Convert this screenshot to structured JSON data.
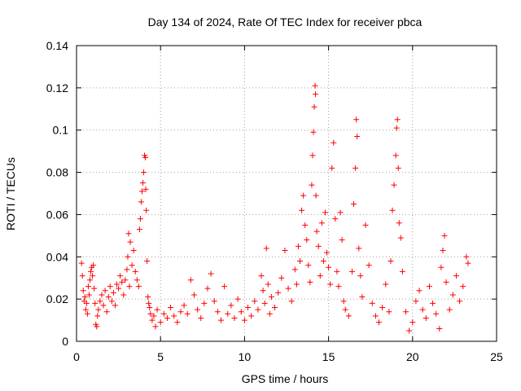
{
  "chart_data": {
    "type": "scatter",
    "title": "Day 134 of 2024, Rate Of TEC Index for receiver pbca",
    "xlabel": "GPS time / hours",
    "ylabel": "ROTI / TECUs",
    "xlim": [
      0,
      25
    ],
    "ylim": [
      0,
      0.14
    ],
    "x_ticks": [
      0,
      5,
      10,
      15,
      20,
      25
    ],
    "x_tick_labels": [
      "0",
      "5",
      "10",
      "15",
      "20",
      "25"
    ],
    "y_ticks": [
      0,
      0.02,
      0.04,
      0.06,
      0.08,
      0.1,
      0.12,
      0.14
    ],
    "y_tick_labels": [
      "0",
      "0.02",
      "0.04",
      "0.06",
      "0.08",
      "0.1",
      "0.12",
      "0.14"
    ],
    "grid": true,
    "marker": "+",
    "color": "#ff0000",
    "series": [
      {
        "name": "ROTI",
        "points": [
          [
            0.3,
            0.037
          ],
          [
            0.35,
            0.031
          ],
          [
            0.4,
            0.024
          ],
          [
            0.45,
            0.019
          ],
          [
            0.5,
            0.021
          ],
          [
            0.55,
            0.015
          ],
          [
            0.6,
            0.018
          ],
          [
            0.65,
            0.013
          ],
          [
            0.7,
            0.026
          ],
          [
            0.75,
            0.022
          ],
          [
            0.8,
            0.029
          ],
          [
            0.85,
            0.033
          ],
          [
            0.9,
            0.035
          ],
          [
            0.95,
            0.031
          ],
          [
            1.0,
            0.036
          ],
          [
            1.05,
            0.025
          ],
          [
            1.1,
            0.018
          ],
          [
            1.15,
            0.008
          ],
          [
            1.2,
            0.007
          ],
          [
            1.25,
            0.012
          ],
          [
            1.3,
            0.015
          ],
          [
            1.4,
            0.019
          ],
          [
            1.5,
            0.022
          ],
          [
            1.6,
            0.017
          ],
          [
            1.7,
            0.024
          ],
          [
            1.8,
            0.014
          ],
          [
            1.9,
            0.021
          ],
          [
            2.0,
            0.026
          ],
          [
            2.1,
            0.019
          ],
          [
            2.2,
            0.023
          ],
          [
            2.3,
            0.017
          ],
          [
            2.4,
            0.027
          ],
          [
            2.5,
            0.025
          ],
          [
            2.6,
            0.031
          ],
          [
            2.7,
            0.028
          ],
          [
            2.8,
            0.022
          ],
          [
            2.9,
            0.029
          ],
          [
            3.0,
            0.034
          ],
          [
            3.05,
            0.04
          ],
          [
            3.1,
            0.051
          ],
          [
            3.15,
            0.026
          ],
          [
            3.2,
            0.047
          ],
          [
            3.3,
            0.036
          ],
          [
            3.4,
            0.043
          ],
          [
            3.5,
            0.033
          ],
          [
            3.6,
            0.029
          ],
          [
            3.7,
            0.026
          ],
          [
            3.75,
            0.053
          ],
          [
            3.8,
            0.058
          ],
          [
            3.85,
            0.066
          ],
          [
            3.9,
            0.071
          ],
          [
            3.95,
            0.075
          ],
          [
            4.0,
            0.08
          ],
          [
            4.05,
            0.088
          ],
          [
            4.1,
            0.087
          ],
          [
            4.12,
            0.072
          ],
          [
            4.15,
            0.062
          ],
          [
            4.2,
            0.038
          ],
          [
            4.25,
            0.021
          ],
          [
            4.3,
            0.018
          ],
          [
            4.35,
            0.016
          ],
          [
            4.4,
            0.013
          ],
          [
            4.5,
            0.01
          ],
          [
            4.6,
            0.012
          ],
          [
            4.7,
            0.007
          ],
          [
            4.8,
            0.015
          ],
          [
            5.0,
            0.009
          ],
          [
            5.2,
            0.013
          ],
          [
            5.4,
            0.011
          ],
          [
            5.6,
            0.016
          ],
          [
            5.8,
            0.012
          ],
          [
            6.0,
            0.009
          ],
          [
            6.2,
            0.014
          ],
          [
            6.4,
            0.017
          ],
          [
            6.6,
            0.013
          ],
          [
            6.8,
            0.029
          ],
          [
            7.0,
            0.022
          ],
          [
            7.2,
            0.015
          ],
          [
            7.4,
            0.011
          ],
          [
            7.6,
            0.018
          ],
          [
            7.8,
            0.025
          ],
          [
            8.0,
            0.032
          ],
          [
            8.2,
            0.019
          ],
          [
            8.4,
            0.014
          ],
          [
            8.6,
            0.01
          ],
          [
            8.8,
            0.026
          ],
          [
            9.0,
            0.013
          ],
          [
            9.2,
            0.017
          ],
          [
            9.4,
            0.011
          ],
          [
            9.6,
            0.02
          ],
          [
            9.8,
            0.014
          ],
          [
            10.0,
            0.01
          ],
          [
            10.2,
            0.016
          ],
          [
            10.4,
            0.012
          ],
          [
            10.6,
            0.019
          ],
          [
            10.8,
            0.015
          ],
          [
            11.0,
            0.031
          ],
          [
            11.1,
            0.024
          ],
          [
            11.2,
            0.018
          ],
          [
            11.3,
            0.044
          ],
          [
            11.4,
            0.027
          ],
          [
            11.5,
            0.013
          ],
          [
            11.6,
            0.021
          ],
          [
            11.8,
            0.016
          ],
          [
            12.0,
            0.023
          ],
          [
            12.2,
            0.03
          ],
          [
            12.4,
            0.043
          ],
          [
            12.6,
            0.025
          ],
          [
            12.8,
            0.019
          ],
          [
            13.0,
            0.034
          ],
          [
            13.1,
            0.027
          ],
          [
            13.2,
            0.045
          ],
          [
            13.3,
            0.038
          ],
          [
            13.4,
            0.062
          ],
          [
            13.5,
            0.069
          ],
          [
            13.6,
            0.055
          ],
          [
            13.7,
            0.048
          ],
          [
            13.8,
            0.036
          ],
          [
            13.9,
            0.028
          ],
          [
            14.0,
            0.074
          ],
          [
            14.05,
            0.088
          ],
          [
            14.1,
            0.099
          ],
          [
            14.15,
            0.111
          ],
          [
            14.2,
            0.121
          ],
          [
            14.22,
            0.117
          ],
          [
            14.25,
            0.069
          ],
          [
            14.3,
            0.052
          ],
          [
            14.4,
            0.045
          ],
          [
            14.5,
            0.031
          ],
          [
            14.6,
            0.056
          ],
          [
            14.7,
            0.038
          ],
          [
            14.8,
            0.061
          ],
          [
            14.9,
            0.042
          ],
          [
            15.0,
            0.035
          ],
          [
            15.1,
            0.027
          ],
          [
            15.2,
            0.082
          ],
          [
            15.3,
            0.094
          ],
          [
            15.4,
            0.058
          ],
          [
            15.5,
            0.033
          ],
          [
            15.6,
            0.026
          ],
          [
            15.7,
            0.061
          ],
          [
            15.8,
            0.048
          ],
          [
            15.9,
            0.019
          ],
          [
            16.0,
            0.015
          ],
          [
            16.2,
            0.012
          ],
          [
            16.4,
            0.033
          ],
          [
            16.5,
            0.065
          ],
          [
            16.6,
            0.082
          ],
          [
            16.65,
            0.105
          ],
          [
            16.7,
            0.097
          ],
          [
            16.8,
            0.044
          ],
          [
            16.9,
            0.031
          ],
          [
            17.0,
            0.021
          ],
          [
            17.2,
            0.055
          ],
          [
            17.4,
            0.036
          ],
          [
            17.6,
            0.018
          ],
          [
            17.8,
            0.012
          ],
          [
            18.0,
            0.009
          ],
          [
            18.2,
            0.016
          ],
          [
            18.4,
            0.027
          ],
          [
            18.6,
            0.014
          ],
          [
            18.7,
            0.038
          ],
          [
            18.8,
            0.062
          ],
          [
            18.9,
            0.074
          ],
          [
            19.0,
            0.088
          ],
          [
            19.05,
            0.101
          ],
          [
            19.1,
            0.105
          ],
          [
            19.15,
            0.082
          ],
          [
            19.2,
            0.056
          ],
          [
            19.3,
            0.049
          ],
          [
            19.4,
            0.033
          ],
          [
            19.6,
            0.014
          ],
          [
            19.8,
            0.005
          ],
          [
            20.0,
            0.009
          ],
          [
            20.2,
            0.019
          ],
          [
            20.4,
            0.024
          ],
          [
            20.6,
            0.015
          ],
          [
            20.8,
            0.011
          ],
          [
            21.0,
            0.026
          ],
          [
            21.2,
            0.018
          ],
          [
            21.4,
            0.013
          ],
          [
            21.6,
            0.006
          ],
          [
            21.7,
            0.035
          ],
          [
            21.8,
            0.043
          ],
          [
            21.9,
            0.05
          ],
          [
            22.0,
            0.028
          ],
          [
            22.2,
            0.015
          ],
          [
            22.4,
            0.022
          ],
          [
            22.6,
            0.031
          ],
          [
            22.8,
            0.019
          ],
          [
            23.0,
            0.026
          ],
          [
            23.2,
            0.04
          ],
          [
            23.3,
            0.037
          ]
        ]
      }
    ]
  }
}
